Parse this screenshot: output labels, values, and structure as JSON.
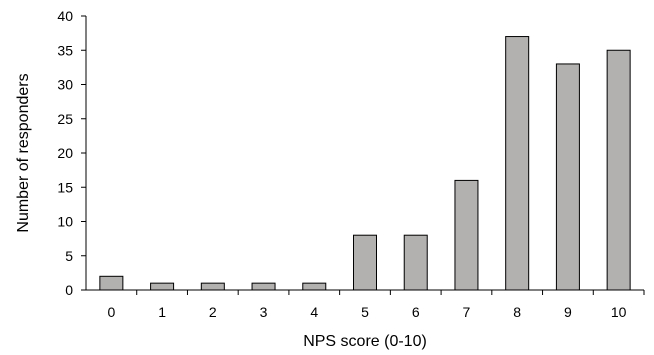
{
  "chart_data": {
    "type": "bar",
    "title": "",
    "xlabel": "NPS score (0-10)",
    "ylabel": "Number of responders",
    "categories": [
      "0",
      "1",
      "2",
      "3",
      "4",
      "5",
      "6",
      "7",
      "8",
      "9",
      "10"
    ],
    "values": [
      2,
      1,
      1,
      1,
      1,
      8,
      8,
      16,
      37,
      33,
      35
    ],
    "ylim": [
      0,
      40
    ],
    "yticks": [
      "0",
      "5",
      "10",
      "15",
      "20",
      "25",
      "30",
      "35",
      "40"
    ],
    "grid": false,
    "legend": "none",
    "bar_color": "#b3b1b0",
    "bar_edge_color": "#000000"
  }
}
